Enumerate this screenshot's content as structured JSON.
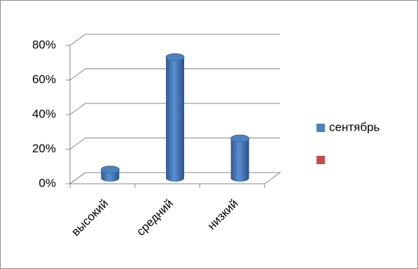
{
  "chart_data": {
    "type": "bar3d",
    "categories": [
      "высокий",
      "средний",
      "низкий"
    ],
    "series": [
      {
        "name": "сентябрь",
        "color": "#4f81bd",
        "values": [
          5,
          70,
          23
        ]
      },
      {
        "name": null,
        "color": "#c0504d",
        "values": [
          null,
          null,
          null
        ]
      }
    ],
    "ylim": [
      0,
      80
    ],
    "yticks": [
      {
        "value": 0,
        "label": "0%"
      },
      {
        "value": 20,
        "label": "20%"
      },
      {
        "value": 40,
        "label": "40%"
      },
      {
        "value": 60,
        "label": "60%"
      },
      {
        "value": 80,
        "label": "80%"
      }
    ],
    "grid": true,
    "legend": "right"
  }
}
